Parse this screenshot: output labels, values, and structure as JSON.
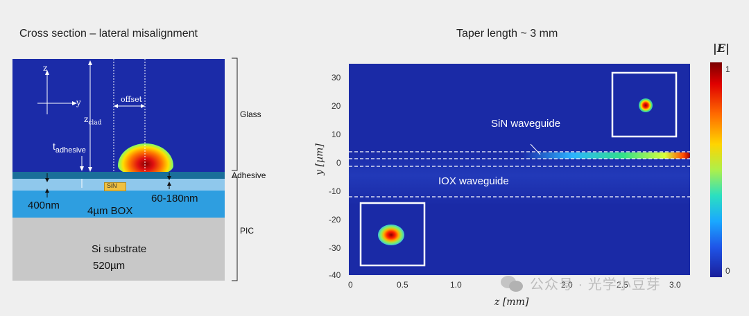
{
  "cross_section": {
    "title": "Cross section – lateral misalignment",
    "axis_z": "z",
    "axis_y": "y",
    "offset_label": "offset",
    "z_clad": {
      "main": "z",
      "sub": "clad"
    },
    "t_adhesive": {
      "main": "t",
      "sub": "adhesive"
    },
    "sin_label": "SiN",
    "dim_400nm": "400nm",
    "dim_60_180nm": "60-180nm",
    "box_label": "4µm BOX",
    "substrate_label": "Si substrate",
    "substrate_thickness": "520µm",
    "side_glass": "Glass",
    "side_adhesive": "Adhesive",
    "side_pic": "PIC"
  },
  "plot": {
    "title": "Taper length ~ 3 mm",
    "xlabel": "z [mm]",
    "ylabel": "y [µm]",
    "x_ticks": [
      "0",
      "0.5",
      "1.0",
      "1.5",
      "2.0",
      "2.5",
      "3.0"
    ],
    "y_ticks": [
      "30",
      "20",
      "10",
      "0",
      "-10",
      "-20",
      "-30",
      "-40"
    ],
    "sin_annotation": "SiN waveguide",
    "iox_annotation": "IOX waveguide",
    "colorbar_title": "|E|",
    "colorbar_max": "1",
    "colorbar_min": "0"
  },
  "watermark": {
    "icon": "wechat-icon",
    "text": "公众号 · 光学小豆芽"
  },
  "colors": {
    "field_background": "#1a2aa6",
    "box_oxide": "#2e9ee0",
    "substrate": "#c8c8c8",
    "sin_core": "#f0c040"
  }
}
